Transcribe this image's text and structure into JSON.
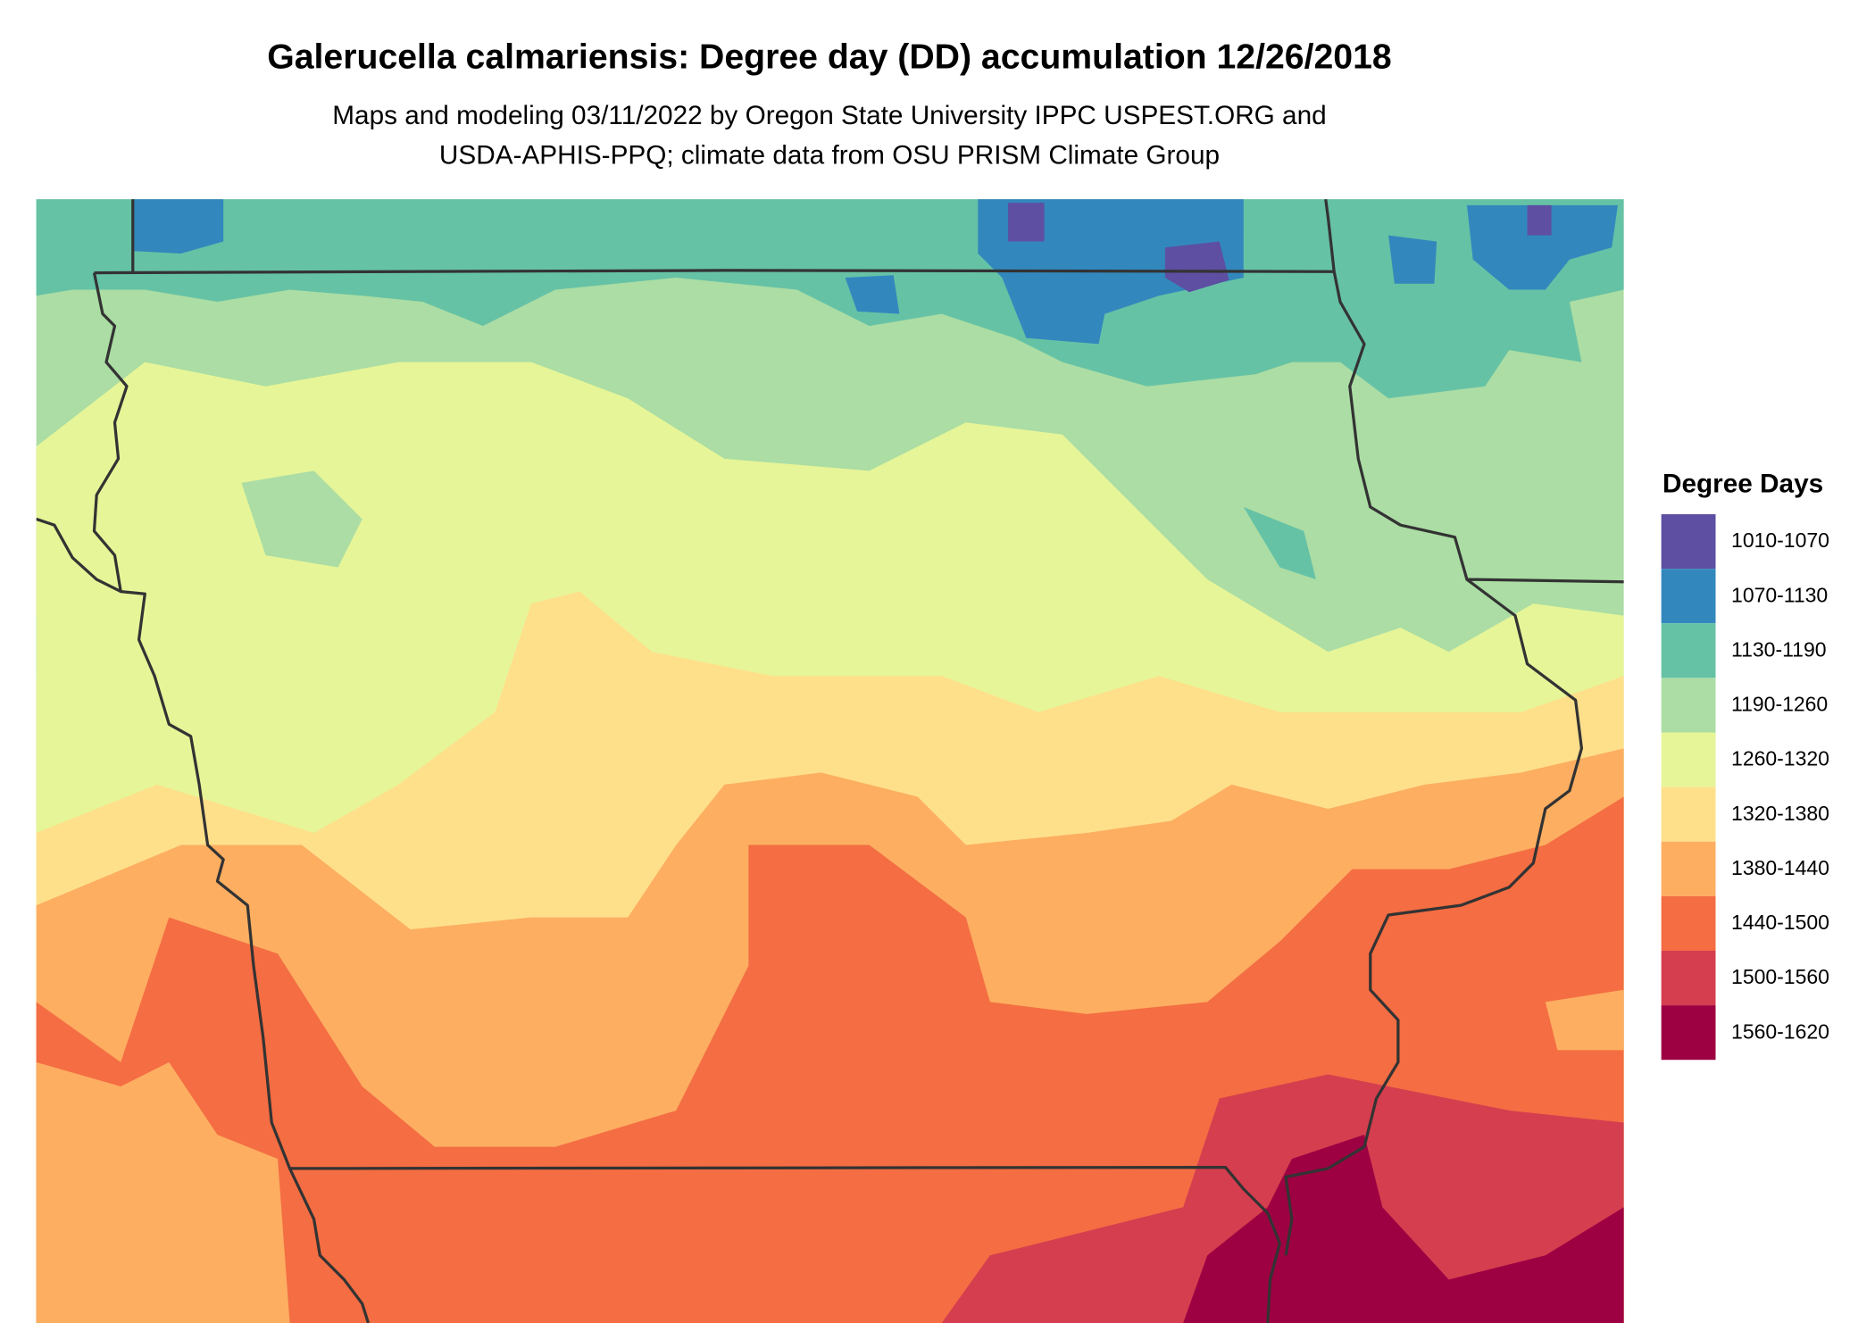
{
  "header": {
    "title": "Galerucella calmariensis: Degree day (DD) accumulation 12/26/2018",
    "subtitle_lines": [
      "Maps and modeling 03/11/2022 by Oregon State University IPPC USPEST.ORG and",
      "USDA-APHIS-PPQ; climate data from OSU PRISM Climate Group"
    ]
  },
  "legend": {
    "title": "Degree Days",
    "items": [
      {
        "label": "1010-1070",
        "color": "#5e4fa2"
      },
      {
        "label": "1070-1130",
        "color": "#3288bd"
      },
      {
        "label": "1130-1190",
        "color": "#66c2a5"
      },
      {
        "label": "1190-1260",
        "color": "#abdda4"
      },
      {
        "label": "1260-1320",
        "color": "#e6f598"
      },
      {
        "label": "1320-1380",
        "color": "#fee08b"
      },
      {
        "label": "1380-1440",
        "color": "#fdae61"
      },
      {
        "label": "1440-1500",
        "color": "#f46d43"
      },
      {
        "label": "1500-1560",
        "color": "#d53e4f"
      },
      {
        "label": "1560-1620",
        "color": "#9e0142"
      }
    ]
  }
}
